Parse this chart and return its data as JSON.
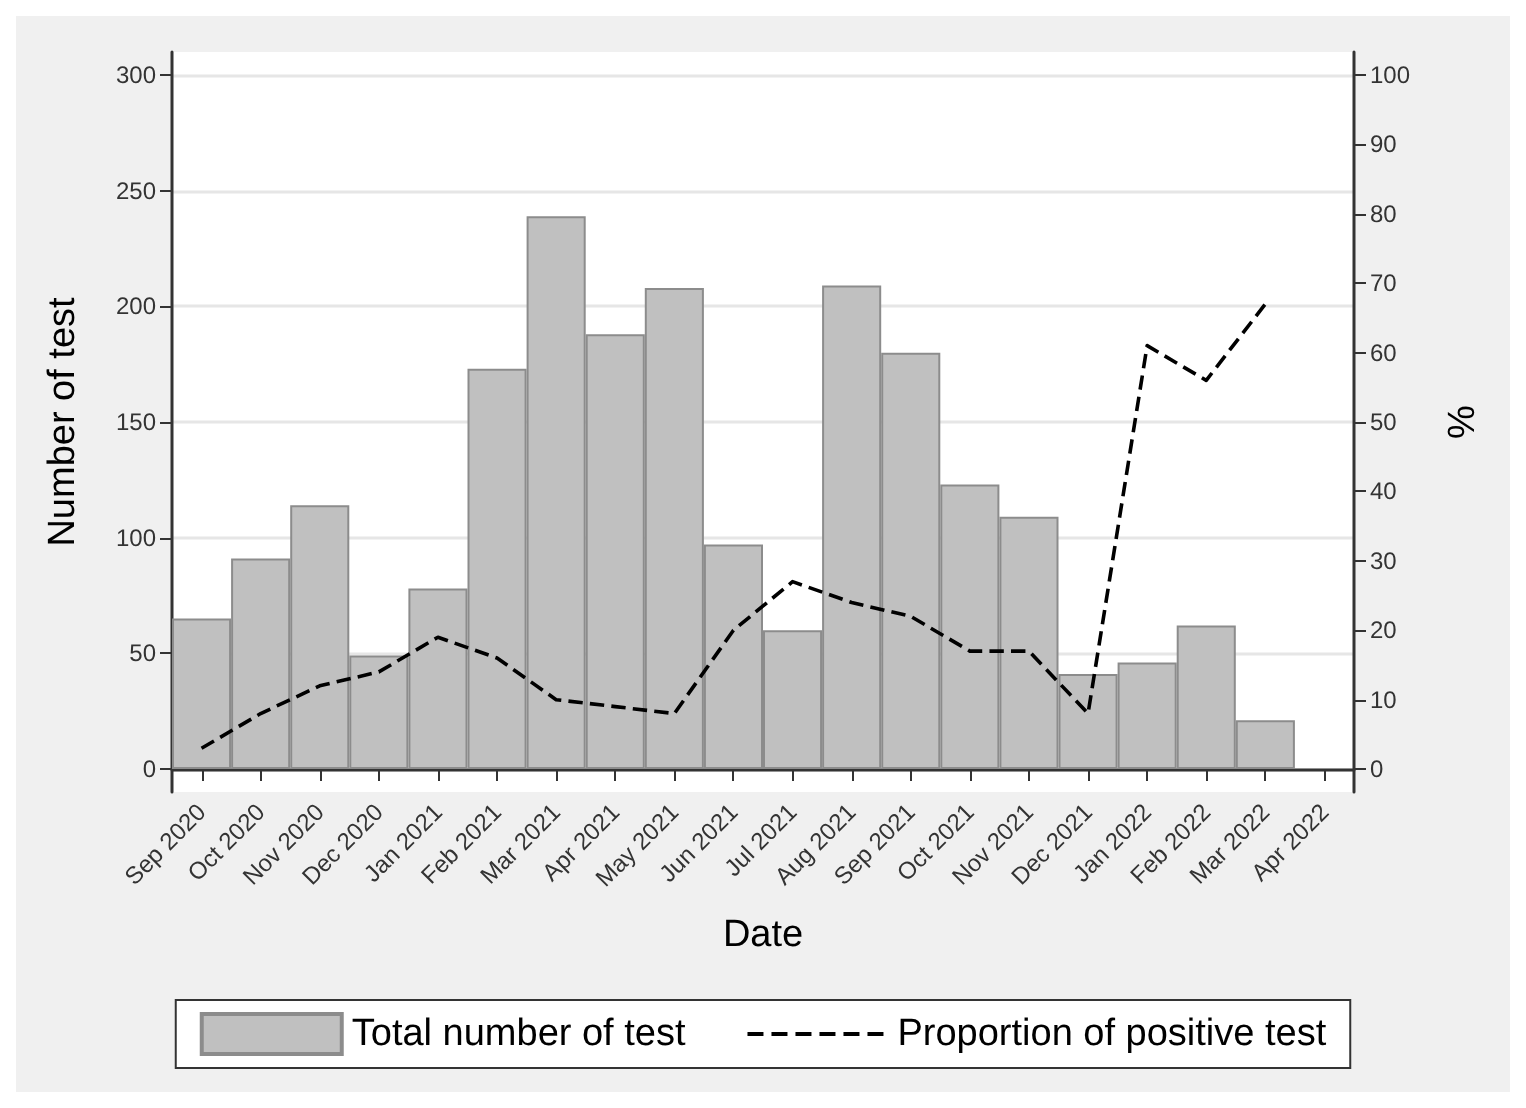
{
  "chart_data": {
    "type": "bar",
    "xlabel": "Date",
    "ylabel": "Number of test",
    "y2label": "%",
    "categories": [
      "Sep 2020",
      "Oct 2020",
      "Nov 2020",
      "Dec 2020",
      "Jan 2021",
      "Feb 2021",
      "Mar 2021",
      "Apr 2021",
      "May 2021",
      "Jun 2021",
      "Jul 2021",
      "Aug 2021",
      "Sep 2021",
      "Oct 2021",
      "Nov 2021",
      "Dec 2021",
      "Jan 2022",
      "Feb 2022",
      "Mar 2022",
      "Apr 2022"
    ],
    "series": [
      {
        "name": "Total number of test",
        "color": "#c0c0c0",
        "values": [
          65,
          91,
          114,
          49,
          78,
          173,
          239,
          188,
          208,
          97,
          60,
          209,
          180,
          123,
          109,
          41,
          46,
          62,
          21,
          null
        ]
      },
      {
        "name": "Proportion of positive test",
        "type": "line",
        "axis": "y2",
        "color": "#000000",
        "values": [
          3,
          8,
          12,
          14,
          19,
          16,
          10,
          9,
          8,
          20,
          27,
          24,
          22,
          17,
          17,
          8,
          61,
          56,
          67,
          null
        ]
      }
    ],
    "ylim": [
      -10,
      310
    ],
    "yticks": [
      0,
      50,
      100,
      150,
      200,
      250,
      300
    ],
    "y2lim": [
      -3.3,
      103.3
    ],
    "y2ticks": [
      0,
      10,
      20,
      30,
      40,
      50,
      60,
      70,
      80,
      90,
      100
    ],
    "grid": "y",
    "legend": "bottom",
    "line_style": "dashed",
    "marker": "none"
  }
}
